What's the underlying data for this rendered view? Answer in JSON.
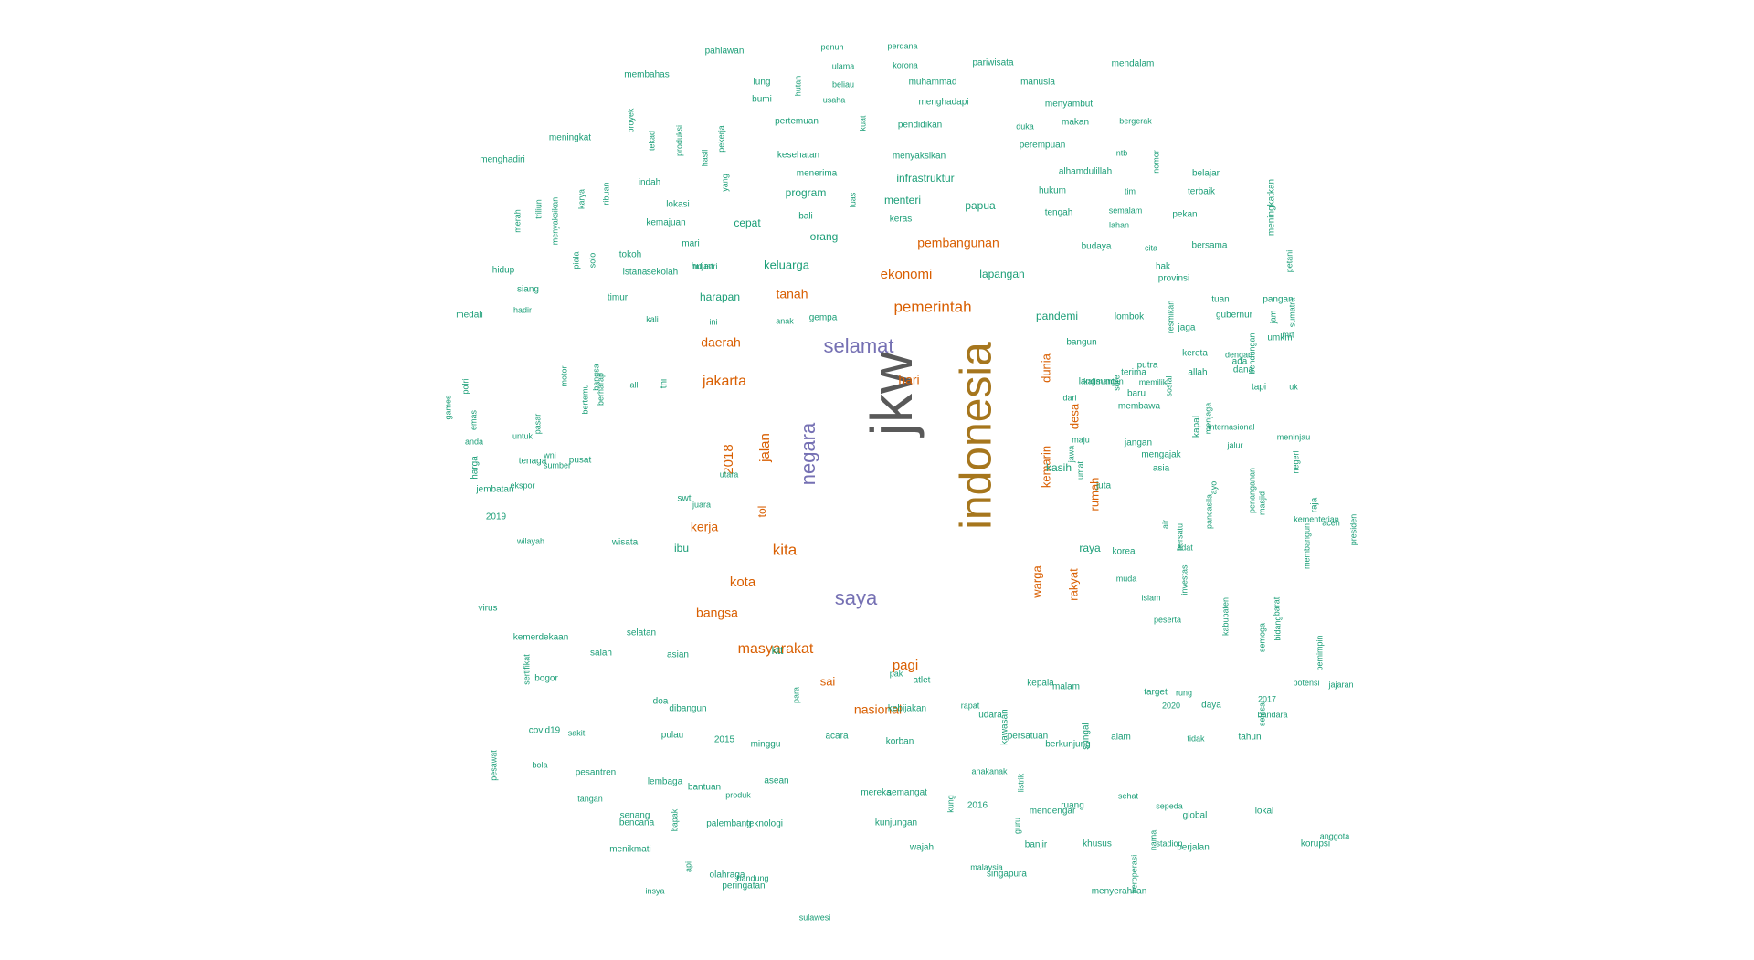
{
  "colors": {
    "gray": "#595959",
    "gold": "#a6761d",
    "purple": "#7570b3",
    "orange": "#d95f02",
    "green": "#1b9e77"
  },
  "words": [
    {
      "text": "jkw",
      "color": "gray"
    },
    {
      "text": "indonesia",
      "color": "gold"
    },
    {
      "text": "selamat",
      "color": "purple"
    },
    {
      "text": "negara",
      "color": "purple"
    },
    {
      "text": "saya",
      "color": "purple"
    },
    {
      "text": "pemerintah",
      "color": "orange"
    },
    {
      "text": "jakarta",
      "color": "orange"
    },
    {
      "text": "kita",
      "color": "orange"
    },
    {
      "text": "masyarakat",
      "color": "orange"
    },
    {
      "text": "ekonomi",
      "color": "orange"
    },
    {
      "text": "pembangunan",
      "color": "orange"
    },
    {
      "text": "kota",
      "color": "orange"
    },
    {
      "text": "hari",
      "color": "orange"
    },
    {
      "text": "pagi",
      "color": "orange"
    },
    {
      "text": "tanah",
      "color": "orange"
    },
    {
      "text": "daerah",
      "color": "orange"
    },
    {
      "text": "kerja",
      "color": "orange"
    },
    {
      "text": "bangsa",
      "color": "orange"
    },
    {
      "text": "jalan",
      "color": "orange"
    },
    {
      "text": "2018",
      "color": "orange"
    },
    {
      "text": "tol",
      "color": "orange"
    },
    {
      "text": "sai",
      "color": "orange"
    },
    {
      "text": "nasional",
      "color": "orange"
    },
    {
      "text": "kemarin",
      "color": "orange"
    },
    {
      "text": "rumah",
      "color": "orange"
    },
    {
      "text": "warga",
      "color": "orange"
    },
    {
      "text": "rakyat",
      "color": "orange"
    },
    {
      "text": "dunia",
      "color": "orange"
    },
    {
      "text": "desa",
      "color": "orange"
    },
    {
      "text": "pahlawan",
      "color": "green"
    },
    {
      "text": "penuh",
      "color": "green"
    },
    {
      "text": "perdana",
      "color": "green"
    },
    {
      "text": "pariwisata",
      "color": "green"
    },
    {
      "text": "mendalam",
      "color": "green"
    },
    {
      "text": "membahas",
      "color": "green"
    },
    {
      "text": "ulama",
      "color": "green"
    },
    {
      "text": "korona",
      "color": "green"
    },
    {
      "text": "lung",
      "color": "green"
    },
    {
      "text": "hutan",
      "color": "green"
    },
    {
      "text": "beliau",
      "color": "green"
    },
    {
      "text": "muhammad",
      "color": "green"
    },
    {
      "text": "manusia",
      "color": "green"
    },
    {
      "text": "bumi",
      "color": "green"
    },
    {
      "text": "usaha",
      "color": "green"
    },
    {
      "text": "menghadapi",
      "color": "green"
    },
    {
      "text": "menyambut",
      "color": "green"
    },
    {
      "text": "proyek",
      "color": "green"
    },
    {
      "text": "pertemuan",
      "color": "green"
    },
    {
      "text": "pendidikan",
      "color": "green"
    },
    {
      "text": "duka",
      "color": "green"
    },
    {
      "text": "makan",
      "color": "green"
    },
    {
      "text": "bergerak",
      "color": "green"
    },
    {
      "text": "meningkat",
      "color": "green"
    },
    {
      "text": "tekad",
      "color": "green"
    },
    {
      "text": "produksi",
      "color": "green"
    },
    {
      "text": "pekerja",
      "color": "green"
    },
    {
      "text": "kuat",
      "color": "green"
    },
    {
      "text": "perempuan",
      "color": "green"
    },
    {
      "text": "ntb",
      "color": "green"
    },
    {
      "text": "nomor",
      "color": "green"
    },
    {
      "text": "menghadiri",
      "color": "green"
    },
    {
      "text": "hasil",
      "color": "green"
    },
    {
      "text": "kesehatan",
      "color": "green"
    },
    {
      "text": "menyaksikan",
      "color": "green"
    },
    {
      "text": "alhamdulillah",
      "color": "green"
    },
    {
      "text": "belajar",
      "color": "green"
    },
    {
      "text": "yang",
      "color": "green"
    },
    {
      "text": "menerima",
      "color": "green"
    },
    {
      "text": "infrastruktur",
      "color": "green"
    },
    {
      "text": "indah",
      "color": "green"
    },
    {
      "text": "ribuan",
      "color": "green"
    },
    {
      "text": "program",
      "color": "green"
    },
    {
      "text": "luas",
      "color": "green"
    },
    {
      "text": "hukum",
      "color": "green"
    },
    {
      "text": "tim",
      "color": "green"
    },
    {
      "text": "terbaik",
      "color": "green"
    },
    {
      "text": "meningkatkan",
      "color": "green"
    },
    {
      "text": "merah",
      "color": "green"
    },
    {
      "text": "triliun",
      "color": "green"
    },
    {
      "text": "menyaksikan",
      "color": "green"
    },
    {
      "text": "karya",
      "color": "green"
    },
    {
      "text": "lokasi",
      "color": "green"
    },
    {
      "text": "bali",
      "color": "green"
    },
    {
      "text": "menteri",
      "color": "green"
    },
    {
      "text": "papua",
      "color": "green"
    },
    {
      "text": "tengah",
      "color": "green"
    },
    {
      "text": "semalam",
      "color": "green"
    },
    {
      "text": "pekan",
      "color": "green"
    },
    {
      "text": "kemajuan",
      "color": "green"
    },
    {
      "text": "cepat",
      "color": "green"
    },
    {
      "text": "keras",
      "color": "green"
    },
    {
      "text": "lahan",
      "color": "green"
    },
    {
      "text": "mari",
      "color": "green"
    },
    {
      "text": "orang",
      "color": "green"
    },
    {
      "text": "budaya",
      "color": "green"
    },
    {
      "text": "cita",
      "color": "green"
    },
    {
      "text": "bersama",
      "color": "green"
    },
    {
      "text": "piala",
      "color": "green"
    },
    {
      "text": "tokoh",
      "color": "green"
    },
    {
      "text": "solo",
      "color": "green"
    },
    {
      "text": "industri",
      "color": "green"
    },
    {
      "text": "hujan",
      "color": "green"
    },
    {
      "text": "petani",
      "color": "green"
    },
    {
      "text": "hidup",
      "color": "green"
    },
    {
      "text": "istana",
      "color": "green"
    },
    {
      "text": "keluarga",
      "color": "green"
    },
    {
      "text": "lapangan",
      "color": "green"
    },
    {
      "text": "hak",
      "color": "green"
    },
    {
      "text": "sekolah",
      "color": "green"
    },
    {
      "text": "provinsi",
      "color": "green"
    },
    {
      "text": "siang",
      "color": "green"
    },
    {
      "text": "timur",
      "color": "green"
    },
    {
      "text": "harapan",
      "color": "green"
    },
    {
      "text": "tuan",
      "color": "green"
    },
    {
      "text": "pangan",
      "color": "green"
    },
    {
      "text": "gubernur",
      "color": "green"
    },
    {
      "text": "medali",
      "color": "green"
    },
    {
      "text": "hadir",
      "color": "green"
    },
    {
      "text": "kali",
      "color": "green"
    },
    {
      "text": "ini",
      "color": "green"
    },
    {
      "text": "anak",
      "color": "green"
    },
    {
      "text": "gempa",
      "color": "green"
    },
    {
      "text": "pandemi",
      "color": "green"
    },
    {
      "text": "lombok",
      "color": "green"
    },
    {
      "text": "resmikan",
      "color": "green"
    },
    {
      "text": "jaga",
      "color": "green"
    },
    {
      "text": "jam",
      "color": "green"
    },
    {
      "text": "sumatra",
      "color": "green"
    },
    {
      "text": "mrt",
      "color": "green"
    },
    {
      "text": "bangun",
      "color": "green"
    },
    {
      "text": "dengan",
      "color": "green"
    },
    {
      "text": "bendungan",
      "color": "green"
    },
    {
      "text": "kereta",
      "color": "green"
    },
    {
      "text": "putra",
      "color": "green"
    },
    {
      "text": "allah",
      "color": "green"
    },
    {
      "text": "ada",
      "color": "green"
    },
    {
      "text": "umkm",
      "color": "green"
    },
    {
      "text": "langsung",
      "color": "green"
    },
    {
      "text": "dari",
      "color": "green"
    },
    {
      "text": "terima",
      "color": "green"
    },
    {
      "text": "sore",
      "color": "green"
    },
    {
      "text": "polri",
      "color": "green"
    },
    {
      "text": "motor",
      "color": "green"
    },
    {
      "text": "bangsa",
      "color": "green"
    },
    {
      "text": "berharap",
      "color": "green"
    },
    {
      "text": "all",
      "color": "green"
    },
    {
      "text": "tni",
      "color": "green"
    },
    {
      "text": "kalimantan",
      "color": "green"
    },
    {
      "text": "memiliki",
      "color": "green"
    },
    {
      "text": "sosial",
      "color": "green"
    },
    {
      "text": "dana",
      "color": "green"
    },
    {
      "text": "tapi",
      "color": "green"
    },
    {
      "text": "uk",
      "color": "green"
    },
    {
      "text": "games",
      "color": "green"
    },
    {
      "text": "emas",
      "color": "green"
    },
    {
      "text": "pasar",
      "color": "green"
    },
    {
      "text": "bertemu",
      "color": "green"
    },
    {
      "text": "baru",
      "color": "green"
    },
    {
      "text": "membawa",
      "color": "green"
    },
    {
      "text": "kapal",
      "color": "green"
    },
    {
      "text": "internasional",
      "color": "green"
    },
    {
      "text": "anda",
      "color": "green"
    },
    {
      "text": "untuk",
      "color": "green"
    },
    {
      "text": "wni",
      "color": "green"
    },
    {
      "text": "sumber",
      "color": "green"
    },
    {
      "text": "maju",
      "color": "green"
    },
    {
      "text": "jawa",
      "color": "green"
    },
    {
      "text": "jangan",
      "color": "green"
    },
    {
      "text": "mengajak",
      "color": "green"
    },
    {
      "text": "menjaga",
      "color": "green"
    },
    {
      "text": "jalur",
      "color": "green"
    },
    {
      "text": "meninjau",
      "color": "green"
    },
    {
      "text": "harga",
      "color": "green"
    },
    {
      "text": "tenaga",
      "color": "green"
    },
    {
      "text": "pusat",
      "color": "green"
    },
    {
      "text": "kasih",
      "color": "green"
    },
    {
      "text": "umat",
      "color": "green"
    },
    {
      "text": "ayo",
      "color": "green"
    },
    {
      "text": "penanganan",
      "color": "green"
    },
    {
      "text": "negeri",
      "color": "green"
    },
    {
      "text": "jembatan",
      "color": "green"
    },
    {
      "text": "ekspor",
      "color": "green"
    },
    {
      "text": "swt",
      "color": "green"
    },
    {
      "text": "juara",
      "color": "green"
    },
    {
      "text": "utara",
      "color": "green"
    },
    {
      "text": "juta",
      "color": "green"
    },
    {
      "text": "asia",
      "color": "green"
    },
    {
      "text": "pancasila",
      "color": "green"
    },
    {
      "text": "masjid",
      "color": "green"
    },
    {
      "text": "raja",
      "color": "green"
    },
    {
      "text": "membangun",
      "color": "green"
    },
    {
      "text": "kementerian",
      "color": "green"
    },
    {
      "text": "aceh",
      "color": "green"
    },
    {
      "text": "presiden",
      "color": "green"
    },
    {
      "text": "2019",
      "color": "green"
    },
    {
      "text": "wilayah",
      "color": "green"
    },
    {
      "text": "wisata",
      "color": "green"
    },
    {
      "text": "ibu",
      "color": "green"
    },
    {
      "text": "raya",
      "color": "green"
    },
    {
      "text": "korea",
      "color": "green"
    },
    {
      "text": "muda",
      "color": "green"
    },
    {
      "text": "air",
      "color": "green"
    },
    {
      "text": "bersatu",
      "color": "green"
    },
    {
      "text": "adat",
      "color": "green"
    },
    {
      "text": "investasi",
      "color": "green"
    },
    {
      "text": "islam",
      "color": "green"
    },
    {
      "text": "peserta",
      "color": "green"
    },
    {
      "text": "kabupaten",
      "color": "green"
    },
    {
      "text": "barat",
      "color": "green"
    },
    {
      "text": "semoga",
      "color": "green"
    },
    {
      "text": "bidang",
      "color": "green"
    },
    {
      "text": "pemimpin",
      "color": "green"
    },
    {
      "text": "potensi",
      "color": "green"
    },
    {
      "text": "jajaran",
      "color": "green"
    },
    {
      "text": "virus",
      "color": "green"
    },
    {
      "text": "kemerdekaan",
      "color": "green"
    },
    {
      "text": "salah",
      "color": "green"
    },
    {
      "text": "selatan",
      "color": "green"
    },
    {
      "text": "asian",
      "color": "green"
    },
    {
      "text": "ktt",
      "color": "green"
    },
    {
      "text": "pak",
      "color": "green"
    },
    {
      "text": "atlet",
      "color": "green"
    },
    {
      "text": "kepala",
      "color": "green"
    },
    {
      "text": "malam",
      "color": "green"
    },
    {
      "text": "target",
      "color": "green"
    },
    {
      "text": "rung",
      "color": "green"
    },
    {
      "text": "daya",
      "color": "green"
    },
    {
      "text": "2017",
      "color": "green"
    },
    {
      "text": "sertifikat",
      "color": "green"
    },
    {
      "text": "bogor",
      "color": "green"
    },
    {
      "text": "doa",
      "color": "green"
    },
    {
      "text": "dibangun",
      "color": "green"
    },
    {
      "text": "para",
      "color": "green"
    },
    {
      "text": "kebijakan",
      "color": "green"
    },
    {
      "text": "rapat",
      "color": "green"
    },
    {
      "text": "udara",
      "color": "green"
    },
    {
      "text": "2020",
      "color": "green"
    },
    {
      "text": "selesai",
      "color": "green"
    },
    {
      "text": "bandara",
      "color": "green"
    },
    {
      "text": "covid19",
      "color": "green"
    },
    {
      "text": "sakit",
      "color": "green"
    },
    {
      "text": "pulau",
      "color": "green"
    },
    {
      "text": "2015",
      "color": "green"
    },
    {
      "text": "minggu",
      "color": "green"
    },
    {
      "text": "acara",
      "color": "green"
    },
    {
      "text": "korban",
      "color": "green"
    },
    {
      "text": "kawasan",
      "color": "green"
    },
    {
      "text": "persatuan",
      "color": "green"
    },
    {
      "text": "sungai",
      "color": "green"
    },
    {
      "text": "berkunjung",
      "color": "green"
    },
    {
      "text": "alam",
      "color": "green"
    },
    {
      "text": "tidak",
      "color": "green"
    },
    {
      "text": "tahun",
      "color": "green"
    },
    {
      "text": "pesawat",
      "color": "green"
    },
    {
      "text": "bola",
      "color": "green"
    },
    {
      "text": "pesantren",
      "color": "green"
    },
    {
      "text": "lembaga",
      "color": "green"
    },
    {
      "text": "bantuan",
      "color": "green"
    },
    {
      "text": "asean",
      "color": "green"
    },
    {
      "text": "semangat",
      "color": "green"
    },
    {
      "text": "anakanak",
      "color": "green"
    },
    {
      "text": "listrik",
      "color": "green"
    },
    {
      "text": "sehat",
      "color": "green"
    },
    {
      "text": "tangan",
      "color": "green"
    },
    {
      "text": "senang",
      "color": "green"
    },
    {
      "text": "produk",
      "color": "green"
    },
    {
      "text": "mereka",
      "color": "green"
    },
    {
      "text": "2016",
      "color": "green"
    },
    {
      "text": "ruang",
      "color": "green"
    },
    {
      "text": "mendengar",
      "color": "green"
    },
    {
      "text": "sepeda",
      "color": "green"
    },
    {
      "text": "global",
      "color": "green"
    },
    {
      "text": "lokal",
      "color": "green"
    },
    {
      "text": "anggota",
      "color": "green"
    },
    {
      "text": "bencana",
      "color": "green"
    },
    {
      "text": "bapak",
      "color": "green"
    },
    {
      "text": "palembang",
      "color": "green"
    },
    {
      "text": "teknologi",
      "color": "green"
    },
    {
      "text": "kunjungan",
      "color": "green"
    },
    {
      "text": "kung",
      "color": "green"
    },
    {
      "text": "guru",
      "color": "green"
    },
    {
      "text": "banjir",
      "color": "green"
    },
    {
      "text": "khusus",
      "color": "green"
    },
    {
      "text": "stadion",
      "color": "green"
    },
    {
      "text": "berjalan",
      "color": "green"
    },
    {
      "text": "korupsi",
      "color": "green"
    },
    {
      "text": "nama",
      "color": "green"
    },
    {
      "text": "menikmati",
      "color": "green"
    },
    {
      "text": "api",
      "color": "green"
    },
    {
      "text": "wajah",
      "color": "green"
    },
    {
      "text": "malaysia",
      "color": "green"
    },
    {
      "text": "olahraga",
      "color": "green"
    },
    {
      "text": "bandung",
      "color": "green"
    },
    {
      "text": "singapura",
      "color": "green"
    },
    {
      "text": "beroperasi",
      "color": "green"
    },
    {
      "text": "insya",
      "color": "green"
    },
    {
      "text": "peringatan",
      "color": "green"
    },
    {
      "text": "menyerahkan",
      "color": "green"
    },
    {
      "text": "sulawesi",
      "color": "green"
    }
  ]
}
